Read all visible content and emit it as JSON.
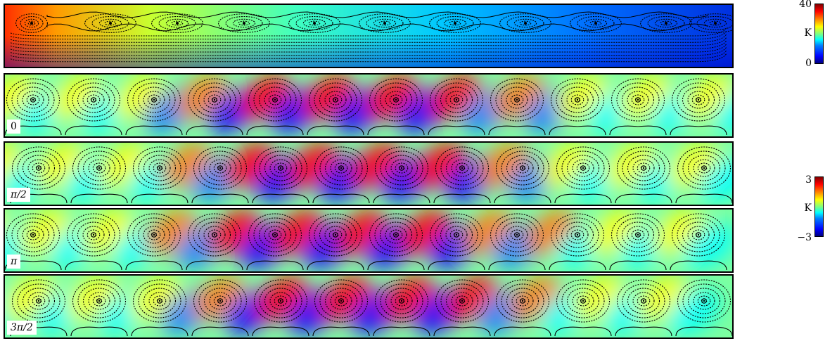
{
  "colors": {
    "jet": [
      "#00007f",
      "#0000ff",
      "#007fff",
      "#00ffff",
      "#7fff7f",
      "#ffff00",
      "#ff7f00",
      "#ff0000",
      "#7f0000"
    ],
    "streamline": "#000000"
  },
  "base_flow": {
    "colorbar": {
      "max_label": "40",
      "unit_label": "K",
      "min_label": "0"
    }
  },
  "perturbation": {
    "colorbar": {
      "max_label": "3",
      "unit_label": "K",
      "min_label": "−3"
    },
    "phases": [
      {
        "label": "0"
      },
      {
        "label": "π/2"
      },
      {
        "label": "π"
      },
      {
        "label": "3π/2"
      }
    ]
  }
}
